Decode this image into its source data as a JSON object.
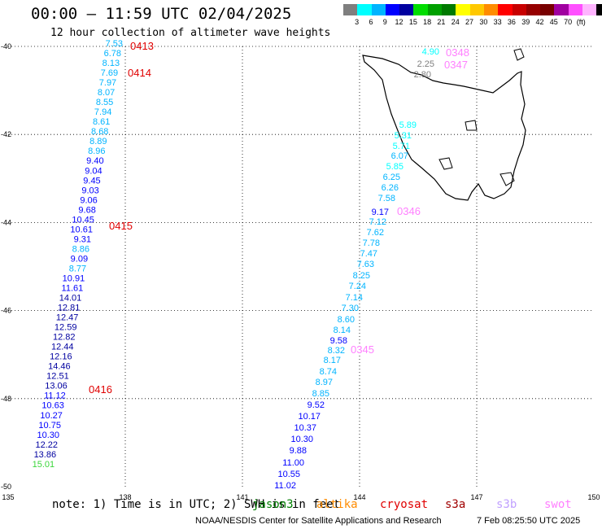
{
  "title": "00:00 – 11:59 UTC 02/04/2025",
  "subtitle": "12 hour collection of altimeter wave heights",
  "colorbar": {
    "colors": [
      "#7f7f7f",
      "#00ffff",
      "#00b4ff",
      "#0000ff",
      "#0000a0",
      "#00dd00",
      "#00a000",
      "#007a00",
      "#ffff00",
      "#ffc800",
      "#ff8c00",
      "#ff0000",
      "#c80000",
      "#960000",
      "#780000",
      "#a000a0",
      "#ff50ff",
      "#ffb4ff",
      "#000000"
    ],
    "labels": [
      "3",
      "6",
      "9",
      "12",
      "15",
      "18",
      "21",
      "24",
      "27",
      "30",
      "33",
      "36",
      "39",
      "42",
      "45",
      "70"
    ],
    "unit": "(ft)"
  },
  "axes": {
    "lon_ticks": [
      "135",
      "138",
      "141",
      "144",
      "147",
      "150"
    ],
    "lat_ticks": [
      "-40",
      "-42",
      "-44",
      "-46",
      "-48",
      "-50"
    ]
  },
  "note": "note: 1) Time is in UTC; 2) SWH is in feet",
  "legend": [
    {
      "label": "jason3",
      "color": "#008000"
    },
    {
      "label": "altika",
      "color": "#ff8c00"
    },
    {
      "label": "cryosat",
      "color": "#e00000"
    },
    {
      "label": "s3a",
      "color": "#a00000"
    },
    {
      "label": "s3b",
      "color": "#c0a0ff"
    },
    {
      "label": "swot",
      "color": "#ff80ff"
    }
  ],
  "credit": "NOAA/NESDIS Center for Satellite Applications and Research",
  "timestamp": "7 Feb 08:25:50 UTC 2025",
  "track_west": {
    "times": [
      {
        "label": "0413",
        "color": "#e00000",
        "lat": -40.0
      },
      {
        "label": "0414",
        "color": "#e00000",
        "lat": -40.6
      },
      {
        "label": "0415",
        "color": "#e00000",
        "lat": -44.3
      },
      {
        "label": "0416",
        "color": "#e00000",
        "lat": -48.0
      }
    ],
    "values": [
      "7.53",
      "6.78",
      "8.13",
      "7.69",
      "7.97",
      "8.07",
      "8.55",
      "7.94",
      "8.61",
      "8.68",
      "8.89",
      "8.96",
      "9.40",
      "9.04",
      "9.45",
      "9.03",
      "9.06",
      "9.68",
      "10.45",
      "10.61",
      "9.31",
      "8.86",
      "9.09",
      "8.77",
      "10.91",
      "11.61",
      "14.01",
      "12.81",
      "12.47",
      "12.59",
      "12.82",
      "12.44",
      "12.16",
      "14.46",
      "12.51",
      "13.06",
      "11.12",
      "10.63",
      "10.27",
      "10.75",
      "10.30",
      "12.22",
      "13.86",
      "15.01"
    ]
  },
  "track_east": {
    "times": [
      {
        "label": "0348",
        "color": "#ff80ff",
        "lat": -40.1
      },
      {
        "label": "0347",
        "color": "#ff80ff",
        "lat": -40.4
      },
      {
        "label": "0346",
        "color": "#ff80ff",
        "lat": -43.9
      },
      {
        "label": "0345",
        "color": "#ff80ff",
        "lat": -47.3
      }
    ],
    "values": [
      "4.90",
      "2.25",
      "2.80",
      "5.89",
      "5.31",
      "5.71",
      "6.07",
      "5.85",
      "6.25",
      "6.26",
      "7.58",
      "9.17",
      "7.12",
      "7.62",
      "7.78",
      "7.47",
      "7.63",
      "8.25",
      "7.24",
      "7.14",
      "7.30",
      "8.60",
      "8.14",
      "9.58",
      "8.32",
      "8.17",
      "8.74",
      "8.97",
      "8.85",
      "9.52",
      "10.17",
      "10.37",
      "10.30",
      "9.88",
      "11.00",
      "10.55",
      "11.02"
    ]
  }
}
